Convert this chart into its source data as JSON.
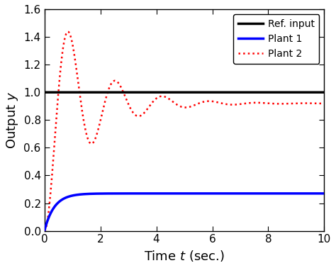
{
  "title": "",
  "xlabel": "Time $t$ (sec.)",
  "ylabel": "Output $y$",
  "xlim": [
    0,
    10
  ],
  "ylim": [
    0,
    1.6
  ],
  "xticks": [
    0,
    2,
    4,
    6,
    8,
    10
  ],
  "yticks": [
    0,
    0.2,
    0.4,
    0.6,
    0.8,
    1.0,
    1.2,
    1.4,
    1.6
  ],
  "ref_color": "#000000",
  "plant1_color": "#0000ff",
  "plant2_color": "#ff0000",
  "legend_labels": [
    "Ref. input",
    "Plant 1",
    "Plant 2"
  ],
  "ref_lw": 2.5,
  "plant1_lw": 2.5,
  "plant2_lw": 1.8,
  "background_color": "#ffffff",
  "plant1_ss": 0.27,
  "plant1_tau": 0.35,
  "plant2_ss": 0.92,
  "plant2_omega": 3.8,
  "plant2_zeta": 0.18
}
